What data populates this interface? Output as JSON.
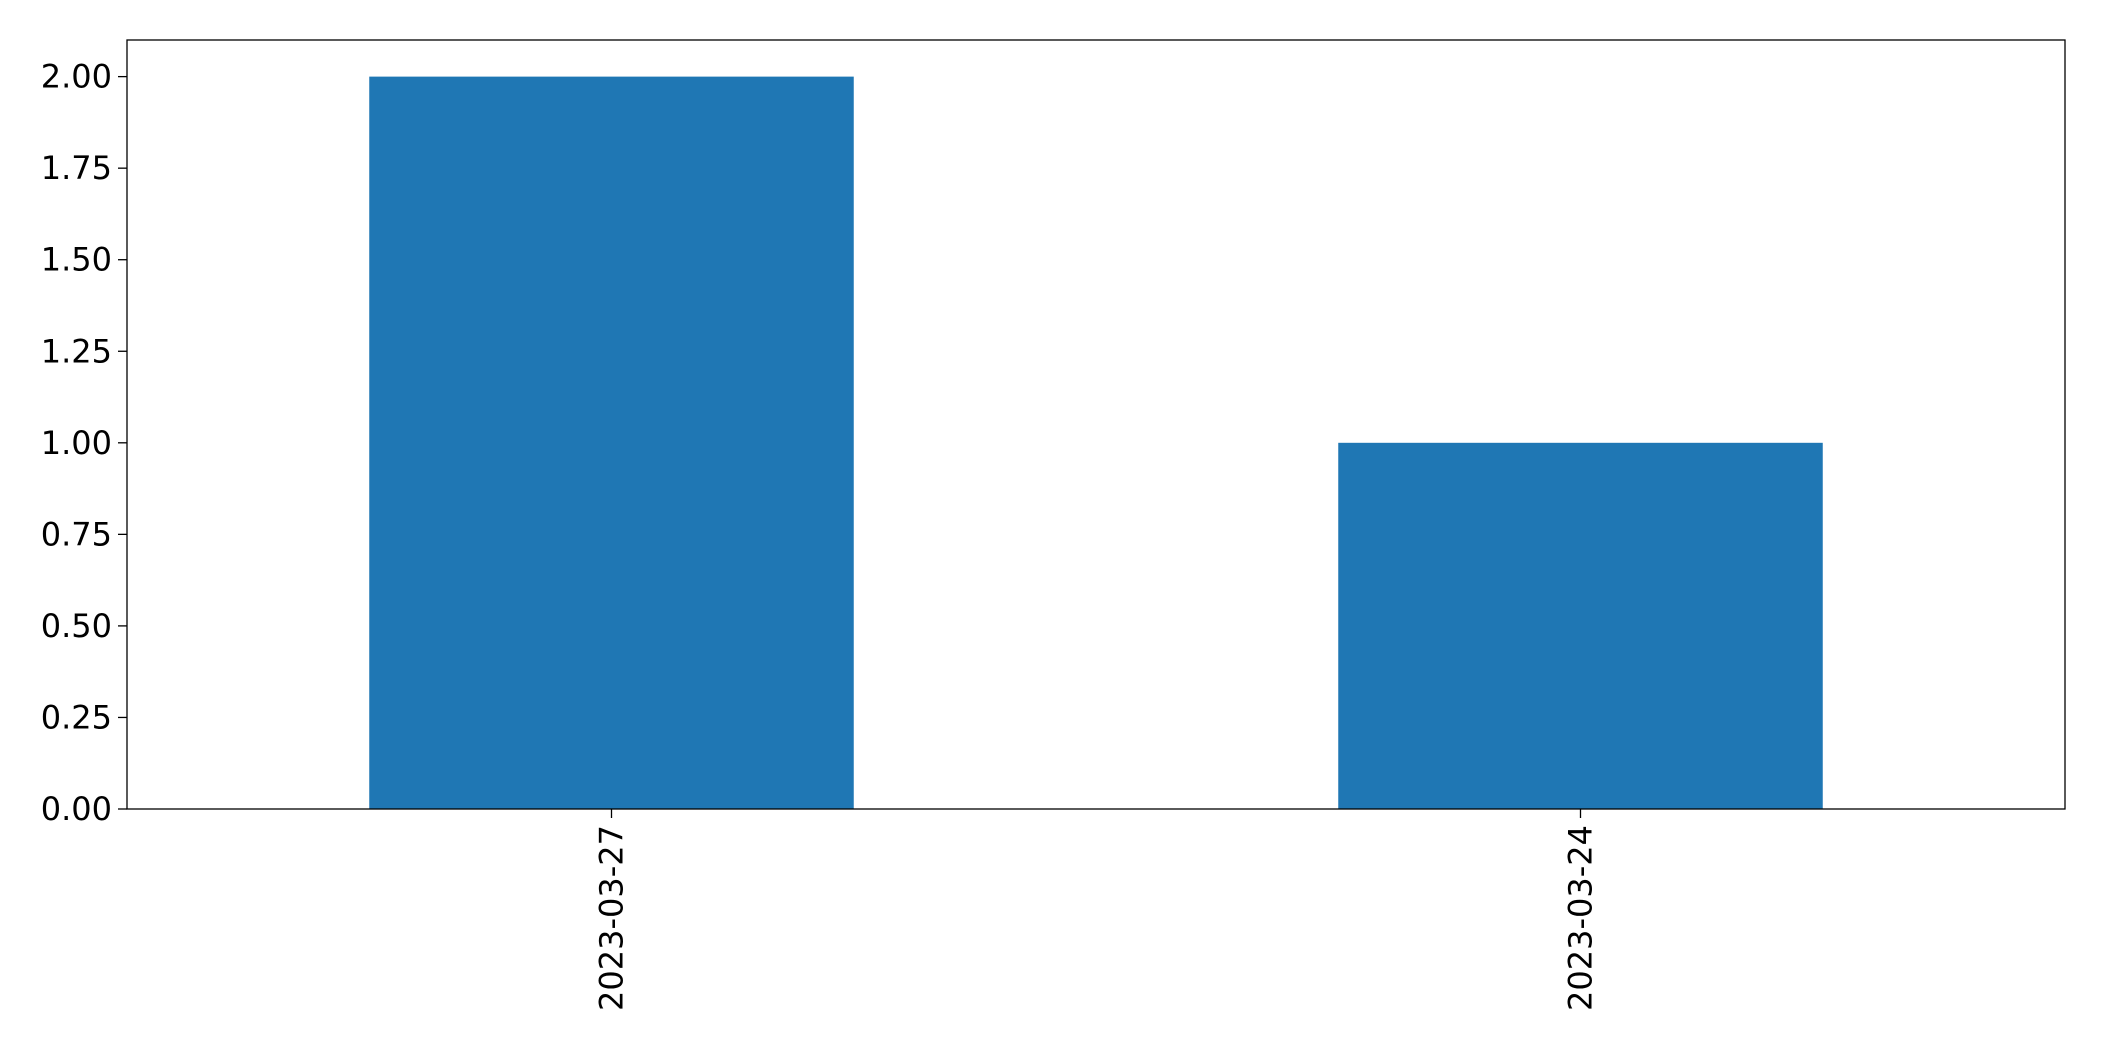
{
  "chart_data": {
    "type": "bar",
    "categories": [
      "2023-03-27",
      "2023-03-24"
    ],
    "values": [
      2,
      1
    ],
    "title": "",
    "xlabel": "",
    "ylabel": "",
    "ylim": [
      0,
      2.1
    ],
    "yticks": [
      "0.00",
      "0.25",
      "0.50",
      "0.75",
      "1.00",
      "1.25",
      "1.50",
      "1.75",
      "2.00"
    ],
    "grid": false,
    "bar_color": "#1f77b4",
    "xtick_rotation": "vertical"
  }
}
